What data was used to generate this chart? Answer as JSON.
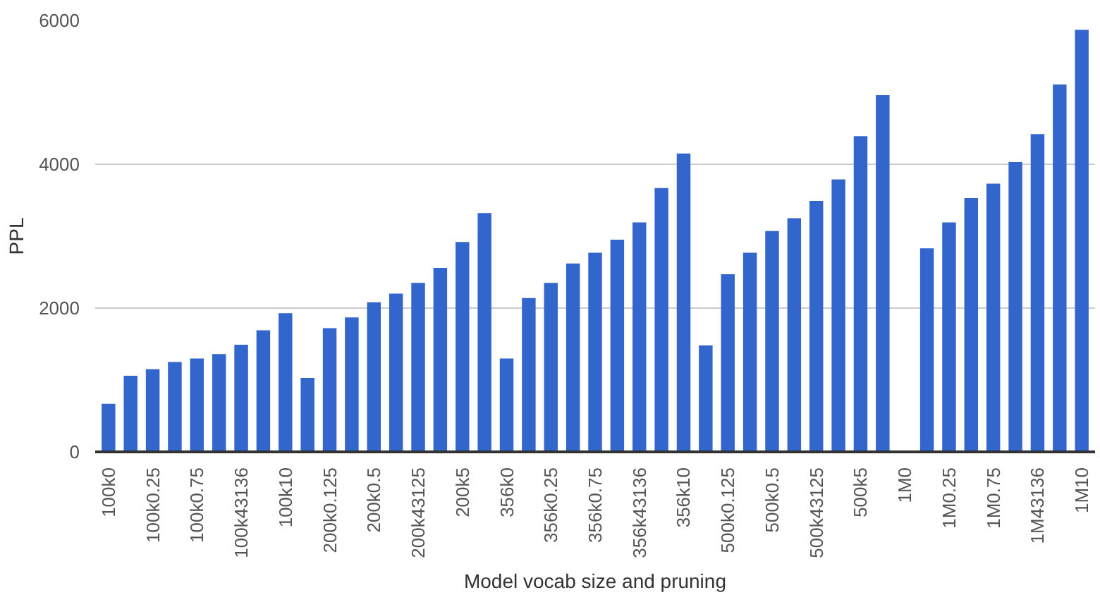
{
  "chart_data": {
    "type": "bar",
    "xlabel": "Model vocab size and pruning",
    "ylabel": "PPL",
    "categories": [
      "100k0",
      null,
      "100k0.25",
      null,
      "100k0.75",
      null,
      "100k43136",
      null,
      "100k10",
      null,
      "200k0.125",
      null,
      "200k0.5",
      null,
      "200k43125",
      null,
      "200k5",
      null,
      "356k0",
      null,
      "356k0.25",
      null,
      "356k0.75",
      null,
      "356k43136",
      null,
      "356k10",
      null,
      "500k0.125",
      null,
      "500k0.5",
      null,
      "500k43125",
      null,
      "500k5",
      null,
      "1M0",
      null,
      "1M0.25",
      null,
      "1M0.75",
      null,
      "1M43136",
      null,
      "1M10"
    ],
    "values": [
      670,
      1060,
      1150,
      1250,
      1300,
      1360,
      1490,
      1690,
      1930,
      1030,
      1720,
      1870,
      2080,
      2200,
      2350,
      2560,
      2920,
      3320,
      1300,
      2140,
      2350,
      2620,
      2770,
      2950,
      3190,
      3670,
      4150,
      1480,
      2470,
      2770,
      3070,
      3250,
      3490,
      3790,
      4390,
      4960,
      null,
      2830,
      3190,
      3530,
      3730,
      4030,
      4420,
      5110,
      5870
    ],
    "color": "#3366cc",
    "ylim": [
      0,
      6000
    ],
    "yticks": [
      0,
      2000,
      4000,
      6000
    ],
    "grid": "y"
  }
}
